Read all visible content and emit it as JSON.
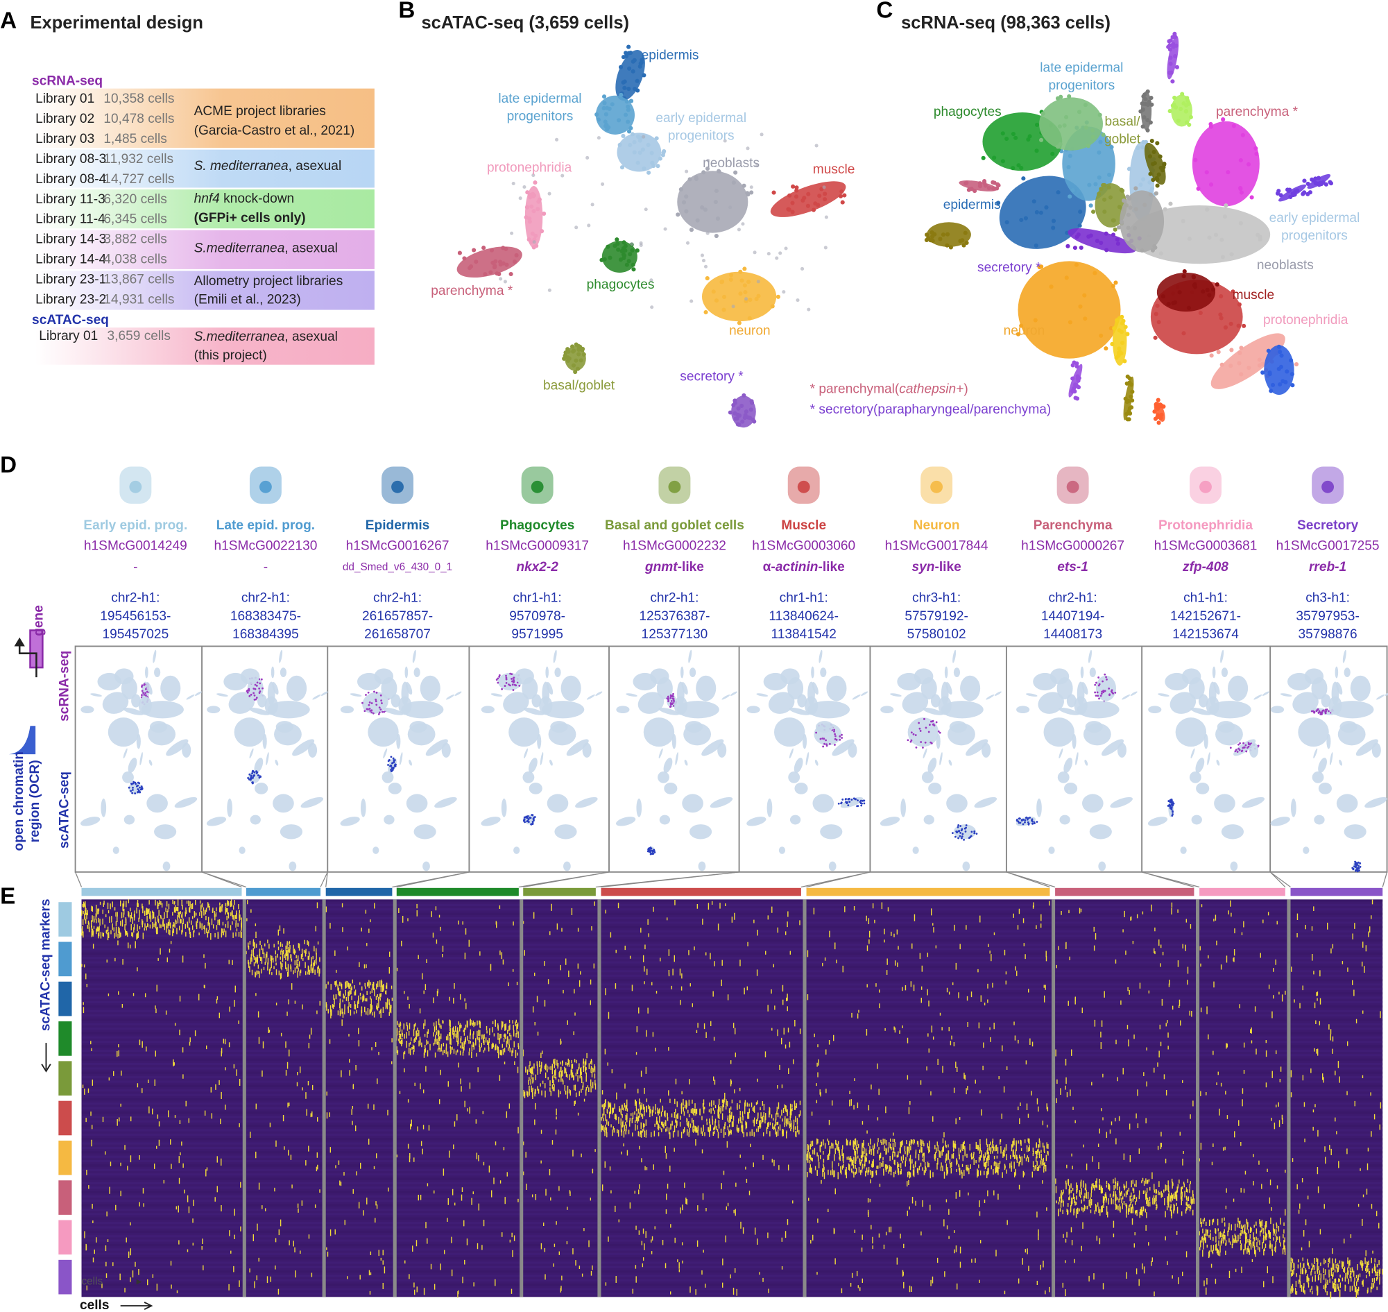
{
  "panels": {
    "a": "A",
    "b": "B",
    "c": "C",
    "d": "D",
    "e": "E"
  },
  "panel_a": {
    "title": "Experimental design",
    "scrna_heading": "scRNA-seq",
    "scrna_libraries": [
      {
        "name": "Library 01",
        "cells": "10,358 cells"
      },
      {
        "name": "Library 02",
        "cells": "10,478 cells"
      },
      {
        "name": "Library 03",
        "cells": "1,485 cells"
      },
      {
        "name": "Library 08-3",
        "cells": "11,932 cells"
      },
      {
        "name": "Library 08-4",
        "cells": "14,727 cells"
      },
      {
        "name": "Library 11-3",
        "cells": "6,320 cells"
      },
      {
        "name": "Library 11-4",
        "cells": "6,345 cells"
      },
      {
        "name": "Library 14-3",
        "cells": "3,882 cells"
      },
      {
        "name": "Library 14-4",
        "cells": "4,038 cells"
      },
      {
        "name": "Library 23-1",
        "cells": "13,867 cells"
      },
      {
        "name": "Library 23-2",
        "cells": "14,931 cells"
      }
    ],
    "scrna_groups": [
      {
        "color": "#f6bf85",
        "lines": [
          [
            {
              "t": "ACME project libraries"
            }
          ],
          [
            {
              "t": "(Garcia-Castro et al., 2021)"
            }
          ]
        ]
      },
      {
        "color": "#b8d6f4",
        "lines": [
          [
            {
              "t": "S. mediterranea",
              "i": true
            },
            {
              "t": ", asexual"
            }
          ]
        ]
      },
      {
        "color": "#a9eaa2",
        "lines": [
          [
            {
              "t": "hnf4",
              "i": true
            },
            {
              "t": " knock-down"
            }
          ],
          [
            {
              "t": "(GFPi+ cells only)",
              "b": true
            }
          ]
        ]
      },
      {
        "color": "#e3aee8",
        "lines": [
          [
            {
              "t": "S.mediterranea",
              "i": true
            },
            {
              "t": ", asexual"
            }
          ]
        ]
      },
      {
        "color": "#bfb0f0",
        "lines": [
          [
            {
              "t": "Allometry project libraries"
            }
          ],
          [
            {
              "t": "(Emili et al., 2023)"
            }
          ]
        ]
      }
    ],
    "scatac_heading": "scATAC-seq",
    "scatac_libraries": [
      {
        "name": "Library 01",
        "cells": "3,659 cells"
      }
    ],
    "scatac_groups": [
      {
        "color": "#f6adc4",
        "lines": [
          [
            {
              "t": "S.mediterranea",
              "i": true
            },
            {
              "t": ", asexual"
            }
          ],
          [
            {
              "t": "(this project)"
            }
          ]
        ]
      }
    ]
  },
  "panel_b": {
    "title": "scATAC-seq (3,659 cells)",
    "labels": [
      {
        "lines": [
          "epidermis"
        ],
        "color": "#2a6db5"
      },
      {
        "lines": [
          "late epidermal",
          "progenitors"
        ],
        "color": "#5ba3d0"
      },
      {
        "lines": [
          "early epidermal",
          "progenitors"
        ],
        "color": "#a6c8e4"
      },
      {
        "lines": [
          "protonephridia"
        ],
        "color": "#f19bbd"
      },
      {
        "lines": [
          "parenchyma *"
        ],
        "color": "#c8607a"
      },
      {
        "lines": [
          "neoblasts"
        ],
        "color": "#9a9cab"
      },
      {
        "lines": [
          "muscle"
        ],
        "color": "#d04848"
      },
      {
        "lines": [
          "phagocytes"
        ],
        "color": "#2e8b2e"
      },
      {
        "lines": [
          "neuron"
        ],
        "color": "#f0a830"
      },
      {
        "lines": [
          "basal/goblet"
        ],
        "color": "#8a9a3a"
      },
      {
        "lines": [
          "secretory *"
        ],
        "color": "#7b3fd0"
      }
    ],
    "legend": [
      {
        "color": "#c8607a",
        "text": [
          {
            "t": "* "
          },
          {
            "t": "parenchymal("
          },
          {
            "t": "cathepsin+",
            "i": true
          },
          {
            "t": ")"
          }
        ]
      },
      {
        "color": "#7b3fd0",
        "text": [
          {
            "t": "* "
          },
          {
            "t": "secretory(parapharyngeal/parenchyma)"
          }
        ]
      }
    ]
  },
  "panel_c": {
    "title": "scRNA-seq (98,363 cells)",
    "labels": [
      {
        "lines": [
          "late epidermal",
          "progenitors"
        ],
        "color": "#5ba3d0"
      },
      {
        "lines": [
          "phagocytes"
        ],
        "color": "#2e8b2e"
      },
      {
        "lines": [
          "basal/",
          "goblet"
        ],
        "color": "#8a9a3a"
      },
      {
        "lines": [
          "parenchyma *"
        ],
        "color": "#c8607a"
      },
      {
        "lines": [
          "epidermis"
        ],
        "color": "#2a6db5"
      },
      {
        "lines": [
          "early epidermal",
          "progenitors"
        ],
        "color": "#a6c8e4"
      },
      {
        "lines": [
          "secretory *"
        ],
        "color": "#7b3fd0"
      },
      {
        "lines": [
          "neoblasts"
        ],
        "color": "#9a9cab"
      },
      {
        "lines": [
          "muscle"
        ],
        "color": "#a02020"
      },
      {
        "lines": [
          "neuron"
        ],
        "color": "#f0a830"
      },
      {
        "lines": [
          "protonephridia"
        ],
        "color": "#f19bbd"
      }
    ]
  },
  "panel_d": {
    "side": {
      "gene": "gene",
      "rna": "scRNA-seq",
      "atac": "scATAC-seq",
      "ocr1": "open chromatin",
      "ocr2": "region (OCR)"
    },
    "columns": [
      {
        "name": "Early epid. prog.",
        "color": "#9ecae1",
        "id": "h1SMcG0014249",
        "gene": [
          {
            "t": "-"
          }
        ],
        "coords": [
          "chr2-h1:",
          "195456153-",
          "195457025"
        ]
      },
      {
        "name": "Late epid. prog.",
        "color": "#4f9bd0",
        "id": "h1SMcG0022130",
        "gene": [
          {
            "t": "-"
          }
        ],
        "coords": [
          "chr2-h1:",
          "168383475-",
          "168384395"
        ]
      },
      {
        "name": "Epidermis",
        "color": "#2066a8",
        "id": "h1SMcG0016267",
        "gene": [
          {
            "t": "dd_Smed_v6_430_0_1"
          }
        ],
        "coords": [
          "chr2-h1:",
          "261657857-",
          "261658707"
        ]
      },
      {
        "name": "Phagocytes",
        "color": "#1f8a2a",
        "id": "h1SMcG0009317",
        "gene": [
          {
            "t": "nkx2-2",
            "i": true,
            "b": true
          }
        ],
        "coords": [
          "chr1-h1:",
          "9570978-",
          "9571995"
        ]
      },
      {
        "name": "Basal and goblet cells",
        "color": "#7a9a3a",
        "id": "h1SMcG0002232",
        "gene": [
          {
            "t": "gnmt",
            "i": true,
            "b": true
          },
          {
            "t": "-like",
            "b": true
          }
        ],
        "coords": [
          "chr2-h1:",
          "125376387-",
          "125377130"
        ]
      },
      {
        "name": "Muscle",
        "color": "#cc4444",
        "id": "h1SMcG0003060",
        "gene": [
          {
            "t": "α-",
            "b": true
          },
          {
            "t": "actinin",
            "i": true,
            "b": true
          },
          {
            "t": "-like",
            "b": true
          }
        ],
        "coords": [
          "chr1-h1:",
          "113840624-",
          "113841542"
        ]
      },
      {
        "name": "Neuron",
        "color": "#f5b942",
        "id": "h1SMcG0017844",
        "gene": [
          {
            "t": "syn",
            "i": true,
            "b": true
          },
          {
            "t": "-like",
            "b": true
          }
        ],
        "coords": [
          "chr3-h1:",
          "57579192-",
          "57580102"
        ]
      },
      {
        "name": "Parenchyma",
        "color": "#c8607a",
        "id": "h1SMcG0000267",
        "gene": [
          {
            "t": "ets-1",
            "i": true,
            "b": true
          }
        ],
        "coords": [
          "chr2-h1:",
          "14407194-",
          "14408173"
        ]
      },
      {
        "name": "Protonephridia",
        "color": "#f59ac0",
        "id": "h1SMcG0003681",
        "gene": [
          {
            "t": "zfp-408",
            "i": true,
            "b": true
          }
        ],
        "coords": [
          "ch1-h1:",
          "142152671-",
          "142153674"
        ]
      },
      {
        "name": "Secretory",
        "color": "#7a3fc8",
        "id": "h1SMcG0017255",
        "gene": [
          {
            "t": "rreb-1",
            "i": true,
            "b": true
          }
        ],
        "coords": [
          "ch3-h1:",
          "35797953-",
          "35798876"
        ]
      }
    ]
  },
  "panel_e": {
    "rows_label": "scATAC-seq markers",
    "cells_label": "cells",
    "inner_label": "cells",
    "colors": [
      "#9ecae1",
      "#4f9bd0",
      "#2066a8",
      "#1f8a2a",
      "#7a9a3a",
      "#cc4c4c",
      "#f5b942",
      "#c8607a",
      "#f59ac0",
      "#8a55c8"
    ]
  }
}
